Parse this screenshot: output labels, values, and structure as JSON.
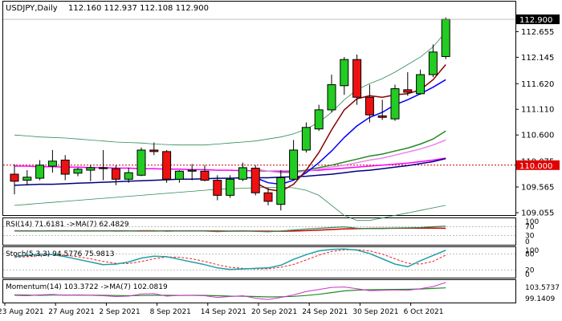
{
  "chart_data": {
    "type": "candlestick",
    "title": "USDJPY,Daily",
    "ohlc_text": "112.160 112.937 112.108 112.900",
    "dates": [
      "2021-08-23",
      "2021-08-24",
      "2021-08-25",
      "2021-08-26",
      "2021-08-27",
      "2021-08-30",
      "2021-08-31",
      "2021-09-01",
      "2021-09-02",
      "2021-09-03",
      "2021-09-06",
      "2021-09-07",
      "2021-09-08",
      "2021-09-09",
      "2021-09-10",
      "2021-09-13",
      "2021-09-14",
      "2021-09-15",
      "2021-09-16",
      "2021-09-17",
      "2021-09-20",
      "2021-09-21",
      "2021-09-22",
      "2021-09-23",
      "2021-09-24",
      "2021-09-27",
      "2021-09-28",
      "2021-09-29",
      "2021-09-30",
      "2021-10-01",
      "2021-10-04",
      "2021-10-05",
      "2021-10-06",
      "2021-10-07",
      "2021-10-08"
    ],
    "x_tick_labels": [
      {
        "i": 0,
        "label": "23 Aug 2021"
      },
      {
        "i": 4,
        "label": "27 Aug 2021"
      },
      {
        "i": 8,
        "label": "2 Sep 2021"
      },
      {
        "i": 12,
        "label": "8 Sep 2021"
      },
      {
        "i": 16,
        "label": "14 Sep 2021"
      },
      {
        "i": 20,
        "label": "20 Sep 2021"
      },
      {
        "i": 24,
        "label": "24 Sep 2021"
      },
      {
        "i": 28,
        "label": "30 Sep 2021"
      },
      {
        "i": 32,
        "label": "6 Oct 2021"
      }
    ],
    "candles": [
      {
        "o": 109.82,
        "h": 110.02,
        "l": 109.42,
        "c": 109.68
      },
      {
        "o": 109.7,
        "h": 109.9,
        "l": 109.6,
        "c": 109.76
      },
      {
        "o": 109.74,
        "h": 110.1,
        "l": 109.7,
        "c": 110.0
      },
      {
        "o": 109.98,
        "h": 110.3,
        "l": 109.85,
        "c": 110.08
      },
      {
        "o": 110.1,
        "h": 110.2,
        "l": 109.7,
        "c": 109.82
      },
      {
        "o": 109.84,
        "h": 109.95,
        "l": 109.78,
        "c": 109.92
      },
      {
        "o": 109.9,
        "h": 110.0,
        "l": 109.68,
        "c": 109.95
      },
      {
        "o": 109.95,
        "h": 110.3,
        "l": 109.7,
        "c": 109.93
      },
      {
        "o": 109.93,
        "h": 110.0,
        "l": 109.6,
        "c": 109.72
      },
      {
        "o": 109.72,
        "h": 109.95,
        "l": 109.65,
        "c": 109.85
      },
      {
        "o": 109.8,
        "h": 110.35,
        "l": 109.78,
        "c": 110.3
      },
      {
        "o": 110.3,
        "h": 110.45,
        "l": 110.2,
        "c": 110.27
      },
      {
        "o": 110.27,
        "h": 110.3,
        "l": 109.65,
        "c": 109.72
      },
      {
        "o": 109.72,
        "h": 109.9,
        "l": 109.65,
        "c": 109.88
      },
      {
        "o": 109.88,
        "h": 110.02,
        "l": 109.7,
        "c": 109.9
      },
      {
        "o": 109.88,
        "h": 110.0,
        "l": 109.68,
        "c": 109.7
      },
      {
        "o": 109.7,
        "h": 109.8,
        "l": 109.3,
        "c": 109.4
      },
      {
        "o": 109.4,
        "h": 109.8,
        "l": 109.35,
        "c": 109.72
      },
      {
        "o": 109.72,
        "h": 110.05,
        "l": 109.68,
        "c": 109.95
      },
      {
        "o": 109.94,
        "h": 110.0,
        "l": 109.4,
        "c": 109.45
      },
      {
        "o": 109.45,
        "h": 109.55,
        "l": 109.2,
        "c": 109.28
      },
      {
        "o": 109.22,
        "h": 109.9,
        "l": 109.1,
        "c": 109.75
      },
      {
        "o": 109.72,
        "h": 110.5,
        "l": 109.7,
        "c": 110.3
      },
      {
        "o": 110.3,
        "h": 110.85,
        "l": 110.25,
        "c": 110.75
      },
      {
        "o": 110.72,
        "h": 111.2,
        "l": 110.68,
        "c": 111.1
      },
      {
        "o": 111.1,
        "h": 111.8,
        "l": 111.05,
        "c": 111.6
      },
      {
        "o": 111.58,
        "h": 112.15,
        "l": 111.4,
        "c": 112.1
      },
      {
        "o": 112.1,
        "h": 112.2,
        "l": 111.2,
        "c": 111.35
      },
      {
        "o": 111.35,
        "h": 111.6,
        "l": 110.85,
        "c": 111.0
      },
      {
        "o": 110.98,
        "h": 111.3,
        "l": 110.9,
        "c": 110.95
      },
      {
        "o": 110.92,
        "h": 111.6,
        "l": 110.88,
        "c": 111.52
      },
      {
        "o": 111.5,
        "h": 111.85,
        "l": 111.38,
        "c": 111.45
      },
      {
        "o": 111.42,
        "h": 111.9,
        "l": 111.4,
        "c": 111.8
      },
      {
        "o": 111.8,
        "h": 112.4,
        "l": 111.75,
        "c": 112.25
      },
      {
        "o": 112.16,
        "h": 112.937,
        "l": 112.108,
        "c": 112.9
      }
    ],
    "main_indicators": [
      {
        "color": "#2e8b57",
        "width": 0.8,
        "values": [
          110.6,
          110.58,
          110.56,
          110.55,
          110.54,
          110.52,
          110.5,
          110.48,
          110.46,
          110.45,
          110.44,
          110.42,
          110.41,
          110.4,
          110.4,
          110.4,
          110.42,
          110.44,
          110.46,
          110.48,
          110.52,
          110.56,
          110.62,
          110.72,
          110.85,
          111.05,
          111.3,
          111.5,
          111.62,
          111.72,
          111.85,
          112.0,
          112.15,
          112.35,
          112.65
        ]
      },
      {
        "color": "#2e8b57",
        "width": 0.8,
        "values": [
          109.2,
          109.22,
          109.24,
          109.26,
          109.28,
          109.3,
          109.32,
          109.34,
          109.36,
          109.38,
          109.4,
          109.42,
          109.44,
          109.46,
          109.48,
          109.5,
          109.52,
          109.53,
          109.54,
          109.55,
          109.56,
          109.56,
          109.55,
          109.5,
          109.4,
          109.2,
          109.0,
          108.9,
          108.9,
          108.95,
          109.0,
          109.05,
          109.1,
          109.15,
          109.2
        ]
      },
      {
        "color": "#ff00ff",
        "width": 1.5,
        "values": [
          109.98,
          109.98,
          109.97,
          109.97,
          109.96,
          109.96,
          109.95,
          109.95,
          109.94,
          109.94,
          109.93,
          109.93,
          109.92,
          109.92,
          109.91,
          109.91,
          109.9,
          109.9,
          109.89,
          109.89,
          109.88,
          109.88,
          109.88,
          109.89,
          109.9,
          109.92,
          109.94,
          109.96,
          109.98,
          110.0,
          110.02,
          110.04,
          110.07,
          110.1,
          110.14
        ]
      },
      {
        "color": "#000080",
        "width": 1.5,
        "values": [
          109.6,
          109.61,
          109.62,
          109.62,
          109.63,
          109.64,
          109.65,
          109.66,
          109.67,
          109.68,
          109.69,
          109.7,
          109.71,
          109.72,
          109.72,
          109.73,
          109.74,
          109.74,
          109.75,
          109.75,
          109.75,
          109.76,
          109.77,
          109.78,
          109.8,
          109.82,
          109.85,
          109.88,
          109.9,
          109.93,
          109.96,
          109.99,
          110.03,
          110.07,
          110.13
        ]
      },
      {
        "color": "#228b22",
        "width": 1.5,
        "values": [
          null,
          null,
          null,
          null,
          null,
          null,
          null,
          null,
          null,
          null,
          null,
          null,
          null,
          null,
          null,
          null,
          null,
          null,
          null,
          109.9,
          109.88,
          109.86,
          109.87,
          109.9,
          109.95,
          110.0,
          110.06,
          110.12,
          110.18,
          110.22,
          110.28,
          110.34,
          110.42,
          110.52,
          110.68
        ]
      },
      {
        "color": "#ee82ee",
        "width": 1.5,
        "values": [
          null,
          null,
          null,
          null,
          null,
          null,
          null,
          null,
          null,
          null,
          null,
          null,
          null,
          null,
          null,
          null,
          null,
          null,
          null,
          109.92,
          109.88,
          109.85,
          109.85,
          109.88,
          109.92,
          109.96,
          110.0,
          110.05,
          110.1,
          110.14,
          110.2,
          110.26,
          110.32,
          110.4,
          110.5
        ]
      },
      {
        "color": "#0000ff",
        "width": 1.5,
        "values": [
          null,
          null,
          null,
          null,
          null,
          null,
          null,
          null,
          null,
          null,
          null,
          null,
          null,
          null,
          null,
          null,
          null,
          null,
          null,
          109.75,
          109.65,
          109.62,
          109.7,
          109.85,
          110.05,
          110.28,
          110.55,
          110.78,
          110.95,
          111.05,
          111.2,
          111.3,
          111.42,
          111.55,
          111.7
        ]
      },
      {
        "color": "#8b0000",
        "width": 1.5,
        "values": [
          null,
          null,
          null,
          null,
          null,
          null,
          null,
          null,
          null,
          null,
          null,
          null,
          null,
          null,
          null,
          null,
          null,
          null,
          null,
          109.65,
          109.52,
          109.48,
          109.62,
          109.9,
          110.25,
          110.7,
          111.1,
          111.32,
          111.38,
          111.35,
          111.4,
          111.42,
          111.5,
          111.7,
          112.0
        ]
      }
    ],
    "reference_line": {
      "value": 110.0,
      "color": "#cc0000"
    },
    "y_ticks": [
      "112.655",
      "112.145",
      "111.620",
      "111.110",
      "110.600",
      "110.075",
      "109.565",
      "109.055"
    ],
    "current_price_label": "112.900",
    "level_label": "110.000",
    "ylim": [
      109.055,
      112.997
    ],
    "rsi": {
      "label": "RSI(14) 71.6181  ->MA(7) 62.4829",
      "ticks": [
        "100",
        "70",
        "30",
        "0"
      ],
      "ylim": [
        0,
        100
      ],
      "levels": [
        70,
        30
      ],
      "rsi": [
        50.5,
        51.0,
        51.5,
        51.6,
        50.8,
        51.2,
        51.0,
        50.7,
        50.0,
        50.5,
        52.5,
        52.5,
        49.5,
        50.8,
        50.6,
        50.5,
        48.0,
        50.0,
        51.8,
        49.0,
        47.0,
        50.5,
        55.0,
        59.5,
        62.5,
        66.0,
        69.0,
        63.0,
        61.0,
        61.0,
        64.0,
        64.5,
        66.0,
        69.5,
        71.6181
      ],
      "ma": [
        50.8,
        51.0,
        51.2,
        51.3,
        51.2,
        51.1,
        51.0,
        51.0,
        50.8,
        50.6,
        50.9,
        51.2,
        51.0,
        50.9,
        50.9,
        50.8,
        50.4,
        50.0,
        50.2,
        49.9,
        49.5,
        49.6,
        50.5,
        52.0,
        54.5,
        57.0,
        59.5,
        61.0,
        62.0,
        62.4,
        62.8,
        63.2,
        63.5,
        64.0,
        62.4829
      ]
    },
    "stoch": {
      "label": "Stoch(5,3,3) 94.5776 75.9813",
      "ticks": [
        "100",
        "80",
        "20",
        "0"
      ],
      "ylim": [
        0,
        100
      ],
      "levels": [
        80,
        20
      ],
      "main": [
        70,
        75,
        80,
        78,
        70,
        60,
        50,
        40,
        42,
        50,
        65,
        72,
        70,
        60,
        50,
        40,
        28,
        22,
        24,
        26,
        28,
        38,
        60,
        78,
        92,
        98,
        99,
        95,
        82,
        62,
        42,
        32,
        55,
        75,
        94.5776
      ],
      "signal": [
        68,
        70,
        74,
        78,
        76,
        70,
        62,
        52,
        45,
        44,
        52,
        62,
        69,
        68,
        62,
        52,
        40,
        30,
        26,
        24,
        25,
        30,
        41,
        58,
        76,
        90,
        96,
        97,
        92,
        80,
        62,
        45,
        42,
        52,
        75.9813
      ]
    },
    "momentum": {
      "label": "Momentum(14) 103.3722  ->MA(7) 102.0819",
      "ticks": [
        "103.5737",
        "99.1409"
      ],
      "ylim": [
        99.1409,
        103.5737
      ],
      "main": [
        100.3,
        100.2,
        100.4,
        100.5,
        100.3,
        100.4,
        100.3,
        100.2,
        100.0,
        100.1,
        100.6,
        100.7,
        100.1,
        100.3,
        100.3,
        100.2,
        99.8,
        100.0,
        100.2,
        99.6,
        99.3,
        99.8,
        100.4,
        101.2,
        101.7,
        102.2,
        102.3,
        101.9,
        101.4,
        101.5,
        101.6,
        101.5,
        101.9,
        102.4,
        103.3722
      ],
      "ma": [
        100.4,
        100.35,
        100.3,
        100.35,
        100.35,
        100.33,
        100.32,
        100.3,
        100.25,
        100.2,
        100.25,
        100.3,
        100.3,
        100.28,
        100.3,
        100.28,
        100.2,
        100.1,
        100.08,
        100.0,
        99.92,
        99.95,
        100.05,
        100.25,
        100.55,
        100.95,
        101.35,
        101.55,
        101.65,
        101.68,
        101.72,
        101.75,
        101.82,
        101.95,
        102.0819
      ]
    }
  }
}
